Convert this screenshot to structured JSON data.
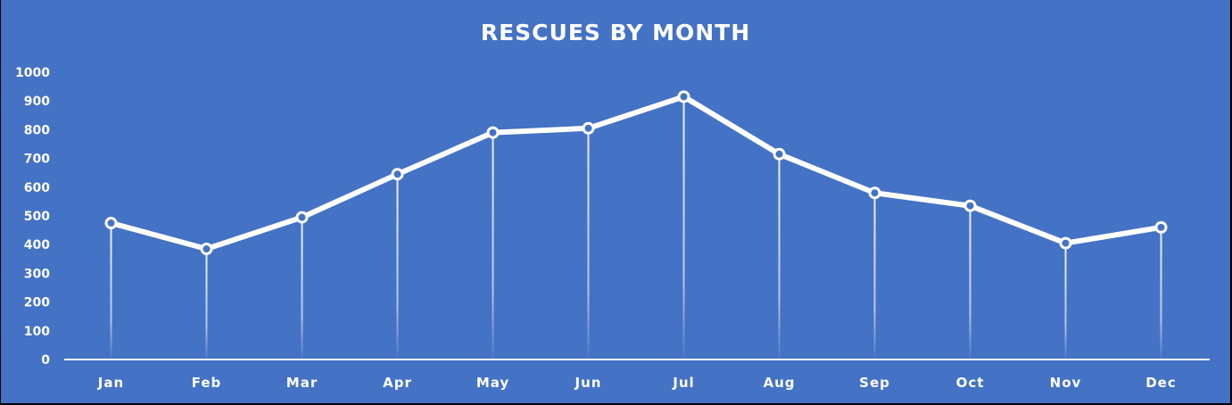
{
  "chart_data": {
    "type": "line",
    "title": "RESCUES BY MONTH",
    "xlabel": "",
    "ylabel": "",
    "categories": [
      "Jan",
      "Feb",
      "Mar",
      "Apr",
      "May",
      "Jun",
      "Jul",
      "Aug",
      "Sep",
      "Oct",
      "Nov",
      "Dec"
    ],
    "series": [
      {
        "name": "Rescues",
        "values": [
          475,
          385,
          495,
          645,
          790,
          805,
          915,
          715,
          580,
          535,
          405,
          460
        ]
      }
    ],
    "ylim": [
      0,
      1000
    ],
    "yticks": [
      0,
      100,
      200,
      300,
      400,
      500,
      600,
      700,
      800,
      900,
      1000
    ],
    "grid": false,
    "drop_lines": true,
    "markers": "hollow-circle",
    "legend": "none"
  },
  "colors": {
    "background": "#4472C4",
    "line": "#FFFFFF",
    "text": "#FFFFFF"
  }
}
